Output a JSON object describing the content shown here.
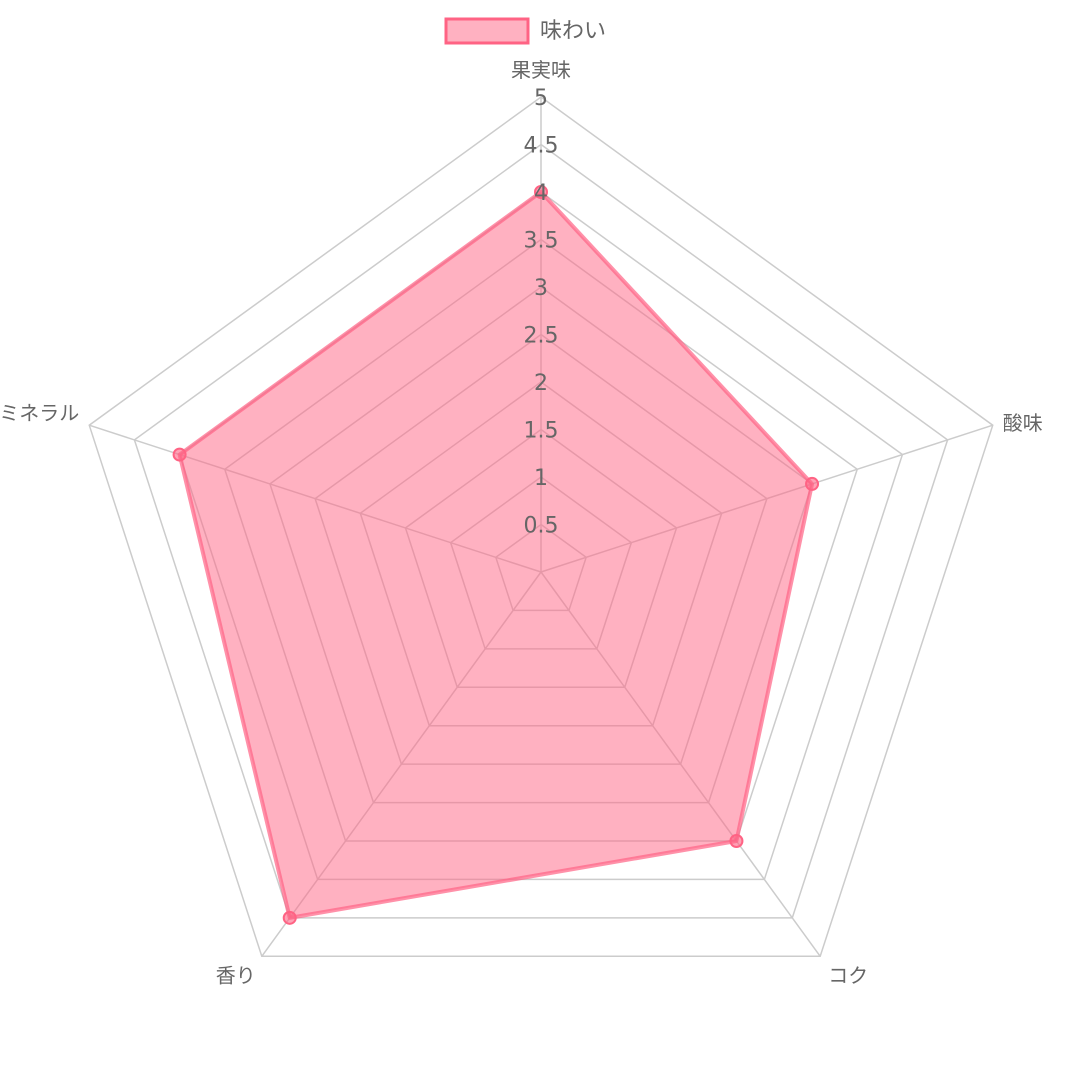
{
  "chart_data": {
    "type": "radar",
    "categories": [
      "果実味",
      "酸味",
      "コク",
      "香り",
      "ミネラル"
    ],
    "series": [
      {
        "name": "味わい",
        "values": [
          4,
          3,
          3.5,
          4.5,
          4
        ]
      }
    ],
    "rlim": [
      0,
      5
    ],
    "ticks": [
      "0.5",
      "1",
      "1.5",
      "2",
      "2.5",
      "3",
      "3.5",
      "4",
      "4.5",
      "5"
    ],
    "tick_step": 0.5,
    "legend_position": "top",
    "grid": true,
    "colors": {
      "fill": "#ff6384",
      "fill_opacity": 0.5,
      "stroke": "#ff6384",
      "grid": "#cccccc"
    }
  }
}
